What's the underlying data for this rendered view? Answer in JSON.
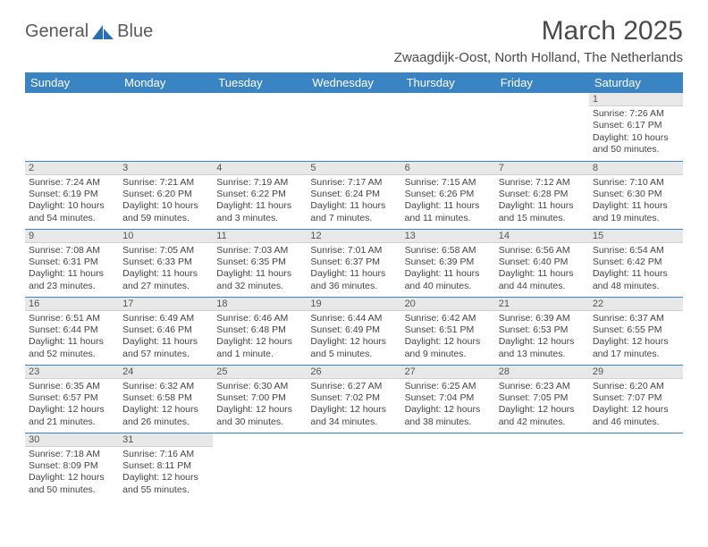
{
  "brand": {
    "left": "General",
    "right": "Blue"
  },
  "title": "March 2025",
  "location": "Zwaagdijk-Oost, North Holland, The Netherlands",
  "colors": {
    "header_bg": "#3b84c4",
    "header_text": "#ffffff",
    "daynum_bg": "#e8e8e8",
    "row_border": "#3b84c4",
    "body_text": "#444444",
    "title_text": "#4a4a4a",
    "logo_text": "#5a5a5a",
    "logo_blue": "#2a6fb3"
  },
  "weekdays": [
    "Sunday",
    "Monday",
    "Tuesday",
    "Wednesday",
    "Thursday",
    "Friday",
    "Saturday"
  ],
  "weeks": [
    [
      {
        "day": "",
        "sunrise": "",
        "sunset": "",
        "daylight": ""
      },
      {
        "day": "",
        "sunrise": "",
        "sunset": "",
        "daylight": ""
      },
      {
        "day": "",
        "sunrise": "",
        "sunset": "",
        "daylight": ""
      },
      {
        "day": "",
        "sunrise": "",
        "sunset": "",
        "daylight": ""
      },
      {
        "day": "",
        "sunrise": "",
        "sunset": "",
        "daylight": ""
      },
      {
        "day": "",
        "sunrise": "",
        "sunset": "",
        "daylight": ""
      },
      {
        "day": "1",
        "sunrise": "Sunrise: 7:26 AM",
        "sunset": "Sunset: 6:17 PM",
        "daylight": "Daylight: 10 hours and 50 minutes."
      }
    ],
    [
      {
        "day": "2",
        "sunrise": "Sunrise: 7:24 AM",
        "sunset": "Sunset: 6:19 PM",
        "daylight": "Daylight: 10 hours and 54 minutes."
      },
      {
        "day": "3",
        "sunrise": "Sunrise: 7:21 AM",
        "sunset": "Sunset: 6:20 PM",
        "daylight": "Daylight: 10 hours and 59 minutes."
      },
      {
        "day": "4",
        "sunrise": "Sunrise: 7:19 AM",
        "sunset": "Sunset: 6:22 PM",
        "daylight": "Daylight: 11 hours and 3 minutes."
      },
      {
        "day": "5",
        "sunrise": "Sunrise: 7:17 AM",
        "sunset": "Sunset: 6:24 PM",
        "daylight": "Daylight: 11 hours and 7 minutes."
      },
      {
        "day": "6",
        "sunrise": "Sunrise: 7:15 AM",
        "sunset": "Sunset: 6:26 PM",
        "daylight": "Daylight: 11 hours and 11 minutes."
      },
      {
        "day": "7",
        "sunrise": "Sunrise: 7:12 AM",
        "sunset": "Sunset: 6:28 PM",
        "daylight": "Daylight: 11 hours and 15 minutes."
      },
      {
        "day": "8",
        "sunrise": "Sunrise: 7:10 AM",
        "sunset": "Sunset: 6:30 PM",
        "daylight": "Daylight: 11 hours and 19 minutes."
      }
    ],
    [
      {
        "day": "9",
        "sunrise": "Sunrise: 7:08 AM",
        "sunset": "Sunset: 6:31 PM",
        "daylight": "Daylight: 11 hours and 23 minutes."
      },
      {
        "day": "10",
        "sunrise": "Sunrise: 7:05 AM",
        "sunset": "Sunset: 6:33 PM",
        "daylight": "Daylight: 11 hours and 27 minutes."
      },
      {
        "day": "11",
        "sunrise": "Sunrise: 7:03 AM",
        "sunset": "Sunset: 6:35 PM",
        "daylight": "Daylight: 11 hours and 32 minutes."
      },
      {
        "day": "12",
        "sunrise": "Sunrise: 7:01 AM",
        "sunset": "Sunset: 6:37 PM",
        "daylight": "Daylight: 11 hours and 36 minutes."
      },
      {
        "day": "13",
        "sunrise": "Sunrise: 6:58 AM",
        "sunset": "Sunset: 6:39 PM",
        "daylight": "Daylight: 11 hours and 40 minutes."
      },
      {
        "day": "14",
        "sunrise": "Sunrise: 6:56 AM",
        "sunset": "Sunset: 6:40 PM",
        "daylight": "Daylight: 11 hours and 44 minutes."
      },
      {
        "day": "15",
        "sunrise": "Sunrise: 6:54 AM",
        "sunset": "Sunset: 6:42 PM",
        "daylight": "Daylight: 11 hours and 48 minutes."
      }
    ],
    [
      {
        "day": "16",
        "sunrise": "Sunrise: 6:51 AM",
        "sunset": "Sunset: 6:44 PM",
        "daylight": "Daylight: 11 hours and 52 minutes."
      },
      {
        "day": "17",
        "sunrise": "Sunrise: 6:49 AM",
        "sunset": "Sunset: 6:46 PM",
        "daylight": "Daylight: 11 hours and 57 minutes."
      },
      {
        "day": "18",
        "sunrise": "Sunrise: 6:46 AM",
        "sunset": "Sunset: 6:48 PM",
        "daylight": "Daylight: 12 hours and 1 minute."
      },
      {
        "day": "19",
        "sunrise": "Sunrise: 6:44 AM",
        "sunset": "Sunset: 6:49 PM",
        "daylight": "Daylight: 12 hours and 5 minutes."
      },
      {
        "day": "20",
        "sunrise": "Sunrise: 6:42 AM",
        "sunset": "Sunset: 6:51 PM",
        "daylight": "Daylight: 12 hours and 9 minutes."
      },
      {
        "day": "21",
        "sunrise": "Sunrise: 6:39 AM",
        "sunset": "Sunset: 6:53 PM",
        "daylight": "Daylight: 12 hours and 13 minutes."
      },
      {
        "day": "22",
        "sunrise": "Sunrise: 6:37 AM",
        "sunset": "Sunset: 6:55 PM",
        "daylight": "Daylight: 12 hours and 17 minutes."
      }
    ],
    [
      {
        "day": "23",
        "sunrise": "Sunrise: 6:35 AM",
        "sunset": "Sunset: 6:57 PM",
        "daylight": "Daylight: 12 hours and 21 minutes."
      },
      {
        "day": "24",
        "sunrise": "Sunrise: 6:32 AM",
        "sunset": "Sunset: 6:58 PM",
        "daylight": "Daylight: 12 hours and 26 minutes."
      },
      {
        "day": "25",
        "sunrise": "Sunrise: 6:30 AM",
        "sunset": "Sunset: 7:00 PM",
        "daylight": "Daylight: 12 hours and 30 minutes."
      },
      {
        "day": "26",
        "sunrise": "Sunrise: 6:27 AM",
        "sunset": "Sunset: 7:02 PM",
        "daylight": "Daylight: 12 hours and 34 minutes."
      },
      {
        "day": "27",
        "sunrise": "Sunrise: 6:25 AM",
        "sunset": "Sunset: 7:04 PM",
        "daylight": "Daylight: 12 hours and 38 minutes."
      },
      {
        "day": "28",
        "sunrise": "Sunrise: 6:23 AM",
        "sunset": "Sunset: 7:05 PM",
        "daylight": "Daylight: 12 hours and 42 minutes."
      },
      {
        "day": "29",
        "sunrise": "Sunrise: 6:20 AM",
        "sunset": "Sunset: 7:07 PM",
        "daylight": "Daylight: 12 hours and 46 minutes."
      }
    ],
    [
      {
        "day": "30",
        "sunrise": "Sunrise: 7:18 AM",
        "sunset": "Sunset: 8:09 PM",
        "daylight": "Daylight: 12 hours and 50 minutes."
      },
      {
        "day": "31",
        "sunrise": "Sunrise: 7:16 AM",
        "sunset": "Sunset: 8:11 PM",
        "daylight": "Daylight: 12 hours and 55 minutes."
      },
      {
        "day": "",
        "sunrise": "",
        "sunset": "",
        "daylight": ""
      },
      {
        "day": "",
        "sunrise": "",
        "sunset": "",
        "daylight": ""
      },
      {
        "day": "",
        "sunrise": "",
        "sunset": "",
        "daylight": ""
      },
      {
        "day": "",
        "sunrise": "",
        "sunset": "",
        "daylight": ""
      },
      {
        "day": "",
        "sunrise": "",
        "sunset": "",
        "daylight": ""
      }
    ]
  ]
}
